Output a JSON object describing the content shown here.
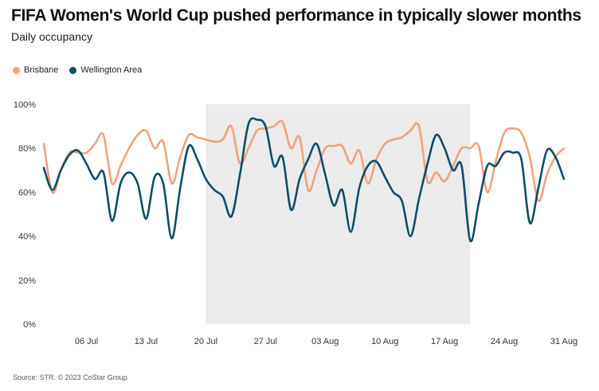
{
  "header": {
    "title": "FIFA Women's World Cup pushed performance in typically slower months",
    "subtitle": "Daily occupancy"
  },
  "footer": {
    "source": "Source: STR. © 2023 CoStar Group"
  },
  "colors": {
    "Brisbane": "#f0a27e",
    "Wellington Area": "#0e4d68",
    "highlight": "#ebebeb"
  },
  "chart_data": {
    "type": "line",
    "title": "FIFA Women's World Cup pushed performance in typically slower months",
    "subtitle": "Daily occupancy",
    "xlabel": "",
    "ylabel": "",
    "x_start": "2023-07-01",
    "x_end": "2023-08-31",
    "x_tick_labels": [
      "06 Jul",
      "13 Jul",
      "20 Jul",
      "27 Jul",
      "03 Aug",
      "10 Aug",
      "17 Aug",
      "24 Aug",
      "31 Aug"
    ],
    "y_tick_labels": [
      "0%",
      "20%",
      "40%",
      "60%",
      "80%",
      "100%"
    ],
    "ylim": [
      0,
      100
    ],
    "grid": false,
    "legend_position": "top-left",
    "highlight_range": [
      "2023-07-20",
      "2023-08-20"
    ],
    "series": [
      {
        "name": "Brisbane",
        "color": "#f0a27e",
        "values": [
          82,
          60,
          70,
          78,
          78,
          78,
          82,
          86,
          64,
          72,
          80,
          86,
          88,
          80,
          83,
          64,
          76,
          86,
          85,
          84,
          83,
          84,
          90,
          73,
          80,
          88,
          89,
          90,
          92,
          80,
          85,
          61,
          70,
          80,
          81,
          81,
          73,
          79,
          64,
          75,
          82,
          84,
          85,
          88,
          90,
          65,
          69,
          65,
          72,
          80,
          80,
          81,
          60,
          74,
          87,
          89,
          87,
          76,
          56,
          68,
          76,
          80
        ]
      },
      {
        "name": "Wellington Area",
        "color": "#0e4d68",
        "values": [
          71,
          61,
          70,
          77,
          79,
          73,
          66,
          69,
          47,
          64,
          69,
          64,
          48,
          67,
          64,
          39,
          62,
          81,
          75,
          66,
          61,
          58,
          49,
          68,
          91,
          93,
          90,
          72,
          76,
          52,
          66,
          75,
          82,
          68,
          54,
          61,
          42,
          62,
          72,
          74,
          67,
          60,
          56,
          40,
          57,
          73,
          86,
          80,
          70,
          72,
          38,
          55,
          72,
          72,
          78,
          78,
          75,
          46,
          62,
          79,
          76,
          66
        ]
      }
    ]
  }
}
